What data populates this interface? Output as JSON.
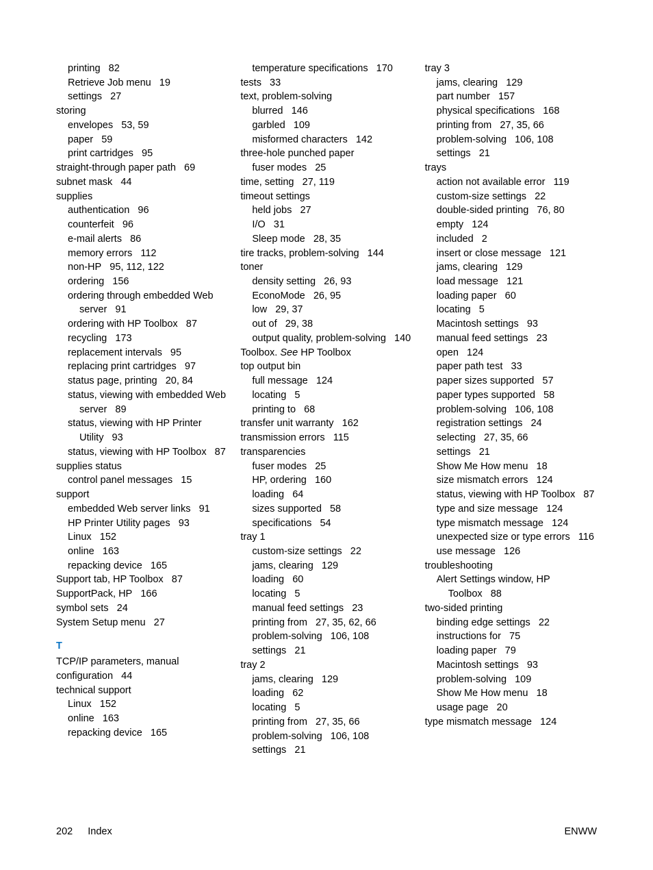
{
  "footer": {
    "page_number": "202",
    "section": "Index",
    "right": "ENWW"
  },
  "section_letter": "T",
  "col1": [
    {
      "lvl": 1,
      "t": "printing",
      "p": "82"
    },
    {
      "lvl": 1,
      "t": "Retrieve Job menu",
      "p": "19"
    },
    {
      "lvl": 1,
      "t": "settings",
      "p": "27"
    },
    {
      "lvl": 0,
      "t": "storing",
      "p": ""
    },
    {
      "lvl": 1,
      "t": "envelopes",
      "p": "53,  59"
    },
    {
      "lvl": 1,
      "t": "paper",
      "p": "59"
    },
    {
      "lvl": 1,
      "t": "print cartridges",
      "p": "95"
    },
    {
      "lvl": 0,
      "t": "straight-through paper path",
      "p": "69"
    },
    {
      "lvl": 0,
      "t": "subnet mask",
      "p": "44"
    },
    {
      "lvl": 0,
      "t": "supplies",
      "p": ""
    },
    {
      "lvl": 1,
      "t": "authentication",
      "p": "96"
    },
    {
      "lvl": 1,
      "t": "counterfeit",
      "p": "96"
    },
    {
      "lvl": 1,
      "t": "e-mail alerts",
      "p": "86"
    },
    {
      "lvl": 1,
      "t": "memory errors",
      "p": "112"
    },
    {
      "lvl": 1,
      "t": "non-HP",
      "p": "95,  112,  122"
    },
    {
      "lvl": 1,
      "t": "ordering",
      "p": "156"
    },
    {
      "lvl": 1,
      "t": "ordering through embedded Web server",
      "p": "91"
    },
    {
      "lvl": 1,
      "t": "ordering with HP Toolbox",
      "p": "87"
    },
    {
      "lvl": 1,
      "t": "recycling",
      "p": "173"
    },
    {
      "lvl": 1,
      "t": "replacement intervals",
      "p": "95"
    },
    {
      "lvl": 1,
      "t": "replacing print cartridges",
      "p": "97"
    },
    {
      "lvl": 1,
      "t": "status page, printing",
      "p": "20,  84"
    },
    {
      "lvl": 1,
      "t": "status, viewing with embedded Web server",
      "p": "89"
    },
    {
      "lvl": 1,
      "t": "status, viewing with HP Printer Utility",
      "p": "93"
    },
    {
      "lvl": 1,
      "t": "status, viewing with HP Toolbox",
      "p": "87"
    },
    {
      "lvl": 0,
      "t": "supplies status",
      "p": ""
    },
    {
      "lvl": 1,
      "t": "control panel messages",
      "p": "15"
    },
    {
      "lvl": 0,
      "t": "support",
      "p": ""
    },
    {
      "lvl": 1,
      "t": "embedded Web server links",
      "p": "91"
    },
    {
      "lvl": 1,
      "t": "HP Printer Utility pages",
      "p": "93"
    },
    {
      "lvl": 1,
      "t": "Linux",
      "p": "152"
    },
    {
      "lvl": 1,
      "t": "online",
      "p": "163"
    },
    {
      "lvl": 1,
      "t": "repacking device",
      "p": "165"
    },
    {
      "lvl": 0,
      "t": "Support tab, HP Toolbox",
      "p": "87"
    },
    {
      "lvl": 0,
      "t": "SupportPack, HP",
      "p": "166"
    },
    {
      "lvl": 0,
      "t": "symbol sets",
      "p": "24"
    },
    {
      "lvl": 0,
      "t": "System Setup menu",
      "p": "27"
    }
  ],
  "col1b": [
    {
      "lvl": 0,
      "t": "TCP/IP parameters, manual configuration",
      "p": "44"
    },
    {
      "lvl": 0,
      "t": "technical support",
      "p": ""
    },
    {
      "lvl": 1,
      "t": "Linux",
      "p": "152"
    },
    {
      "lvl": 1,
      "t": "online",
      "p": "163"
    },
    {
      "lvl": 1,
      "t": "repacking device",
      "p": "165"
    }
  ],
  "col2": [
    {
      "lvl": 1,
      "t": "temperature specifications",
      "p": "170"
    },
    {
      "lvl": 0,
      "t": "tests",
      "p": "33"
    },
    {
      "lvl": 0,
      "t": "text, problem-solving",
      "p": ""
    },
    {
      "lvl": 1,
      "t": "blurred",
      "p": "146"
    },
    {
      "lvl": 1,
      "t": "garbled",
      "p": "109"
    },
    {
      "lvl": 1,
      "t": "misformed characters",
      "p": "142"
    },
    {
      "lvl": 0,
      "t": "three-hole punched paper",
      "p": ""
    },
    {
      "lvl": 1,
      "t": "fuser modes",
      "p": "25"
    },
    {
      "lvl": 0,
      "t": "time, setting",
      "p": "27,  119"
    },
    {
      "lvl": 0,
      "t": "timeout settings",
      "p": ""
    },
    {
      "lvl": 1,
      "t": "held jobs",
      "p": "27"
    },
    {
      "lvl": 1,
      "t": "I/O",
      "p": "31"
    },
    {
      "lvl": 1,
      "t": "Sleep mode",
      "p": "28,  35"
    },
    {
      "lvl": 0,
      "t": "tire tracks, problem-solving",
      "p": "144"
    },
    {
      "lvl": 0,
      "t": "toner",
      "p": ""
    },
    {
      "lvl": 1,
      "t": "density setting",
      "p": "26,  93"
    },
    {
      "lvl": 1,
      "t": "EconoMode",
      "p": "26,  95"
    },
    {
      "lvl": 1,
      "t": "low",
      "p": "29,  37"
    },
    {
      "lvl": 1,
      "t": "out of",
      "p": "29,  38"
    },
    {
      "lvl": 1,
      "t": "output quality, problem-solving",
      "p": "140"
    },
    {
      "lvl": 0,
      "t": "Toolbox. <i>See</i> HP Toolbox",
      "p": ""
    },
    {
      "lvl": 0,
      "t": "top output bin",
      "p": ""
    },
    {
      "lvl": 1,
      "t": "full message",
      "p": "124"
    },
    {
      "lvl": 1,
      "t": "locating",
      "p": "5"
    },
    {
      "lvl": 1,
      "t": "printing to",
      "p": "68"
    },
    {
      "lvl": 0,
      "t": "transfer unit warranty",
      "p": "162"
    },
    {
      "lvl": 0,
      "t": "transmission errors",
      "p": "115"
    },
    {
      "lvl": 0,
      "t": "transparencies",
      "p": ""
    },
    {
      "lvl": 1,
      "t": "fuser modes",
      "p": "25"
    },
    {
      "lvl": 1,
      "t": "HP, ordering",
      "p": "160"
    },
    {
      "lvl": 1,
      "t": "loading",
      "p": "64"
    },
    {
      "lvl": 1,
      "t": "sizes supported",
      "p": "58"
    },
    {
      "lvl": 1,
      "t": "specifications",
      "p": "54"
    },
    {
      "lvl": 0,
      "t": "tray 1",
      "p": ""
    },
    {
      "lvl": 1,
      "t": "custom-size settings",
      "p": "22"
    },
    {
      "lvl": 1,
      "t": "jams, clearing",
      "p": "129"
    },
    {
      "lvl": 1,
      "t": "loading",
      "p": "60"
    },
    {
      "lvl": 1,
      "t": "locating",
      "p": "5"
    },
    {
      "lvl": 1,
      "t": "manual feed settings",
      "p": "23"
    },
    {
      "lvl": 1,
      "t": "printing from",
      "p": "27,  35,  62,  66"
    },
    {
      "lvl": 1,
      "t": "problem-solving",
      "p": "106,  108"
    },
    {
      "lvl": 1,
      "t": "settings",
      "p": "21"
    },
    {
      "lvl": 0,
      "t": "tray 2",
      "p": ""
    },
    {
      "lvl": 1,
      "t": "jams, clearing",
      "p": "129"
    },
    {
      "lvl": 1,
      "t": "loading",
      "p": "62"
    },
    {
      "lvl": 1,
      "t": "locating",
      "p": "5"
    },
    {
      "lvl": 1,
      "t": "printing from",
      "p": "27,  35,  66"
    },
    {
      "lvl": 1,
      "t": "problem-solving",
      "p": "106,  108"
    },
    {
      "lvl": 1,
      "t": "settings",
      "p": "21"
    }
  ],
  "col3": [
    {
      "lvl": 0,
      "t": "tray 3",
      "p": ""
    },
    {
      "lvl": 1,
      "t": "jams, clearing",
      "p": "129"
    },
    {
      "lvl": 1,
      "t": "part number",
      "p": "157"
    },
    {
      "lvl": 1,
      "t": "physical specifications",
      "p": "168"
    },
    {
      "lvl": 1,
      "t": "printing from",
      "p": "27,  35,  66"
    },
    {
      "lvl": 1,
      "t": "problem-solving",
      "p": "106,  108"
    },
    {
      "lvl": 1,
      "t": "settings",
      "p": "21"
    },
    {
      "lvl": 0,
      "t": "trays",
      "p": ""
    },
    {
      "lvl": 1,
      "t": "action not available error",
      "p": "119"
    },
    {
      "lvl": 1,
      "t": "custom-size settings",
      "p": "22"
    },
    {
      "lvl": 1,
      "t": "double-sided printing",
      "p": "76,  80"
    },
    {
      "lvl": 1,
      "t": "empty",
      "p": "124"
    },
    {
      "lvl": 1,
      "t": "included",
      "p": "2"
    },
    {
      "lvl": 1,
      "t": "insert or close message",
      "p": "121"
    },
    {
      "lvl": 1,
      "t": "jams, clearing",
      "p": "129"
    },
    {
      "lvl": 1,
      "t": "load message",
      "p": "121"
    },
    {
      "lvl": 1,
      "t": "loading paper",
      "p": "60"
    },
    {
      "lvl": 1,
      "t": "locating",
      "p": "5"
    },
    {
      "lvl": 1,
      "t": "Macintosh settings",
      "p": "93"
    },
    {
      "lvl": 1,
      "t": "manual feed settings",
      "p": "23"
    },
    {
      "lvl": 1,
      "t": "open",
      "p": "124"
    },
    {
      "lvl": 1,
      "t": "paper path test",
      "p": "33"
    },
    {
      "lvl": 1,
      "t": "paper sizes supported",
      "p": "57"
    },
    {
      "lvl": 1,
      "t": "paper types supported",
      "p": "58"
    },
    {
      "lvl": 1,
      "t": "problem-solving",
      "p": "106,  108"
    },
    {
      "lvl": 1,
      "t": "registration settings",
      "p": "24"
    },
    {
      "lvl": 1,
      "t": "selecting",
      "p": "27,  35,  66"
    },
    {
      "lvl": 1,
      "t": "settings",
      "p": "21"
    },
    {
      "lvl": 1,
      "t": "Show Me How menu",
      "p": "18"
    },
    {
      "lvl": 1,
      "t": "size mismatch errors",
      "p": "124"
    },
    {
      "lvl": 1,
      "t": "status, viewing with HP Toolbox",
      "p": "87"
    },
    {
      "lvl": 1,
      "t": "type and size message",
      "p": "124"
    },
    {
      "lvl": 1,
      "t": "type mismatch message",
      "p": "124"
    },
    {
      "lvl": 1,
      "t": "unexpected size or type errors",
      "p": "116"
    },
    {
      "lvl": 1,
      "t": "use message",
      "p": "126"
    },
    {
      "lvl": 0,
      "t": "troubleshooting",
      "p": ""
    },
    {
      "lvl": 1,
      "t": "Alert Settings window, HP Toolbox",
      "p": "88"
    },
    {
      "lvl": 0,
      "t": "two-sided printing",
      "p": ""
    },
    {
      "lvl": 1,
      "t": "binding edge settings",
      "p": "22"
    },
    {
      "lvl": 1,
      "t": "instructions for",
      "p": "75"
    },
    {
      "lvl": 1,
      "t": "loading paper",
      "p": "79"
    },
    {
      "lvl": 1,
      "t": "Macintosh settings",
      "p": "93"
    },
    {
      "lvl": 1,
      "t": "problem-solving",
      "p": "109"
    },
    {
      "lvl": 1,
      "t": "Show Me How menu",
      "p": "18"
    },
    {
      "lvl": 1,
      "t": "usage page",
      "p": "20"
    },
    {
      "lvl": 0,
      "t": "type mismatch message",
      "p": "124"
    }
  ]
}
